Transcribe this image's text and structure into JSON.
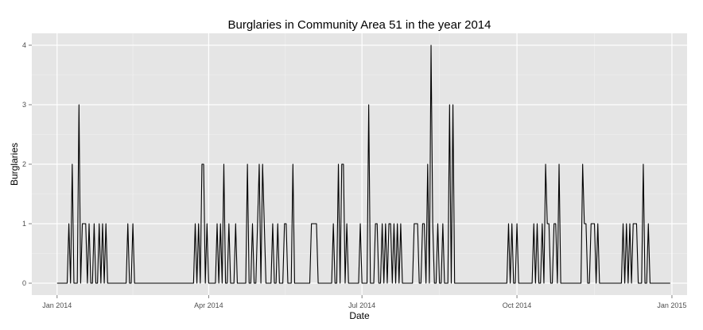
{
  "chart_data": {
    "type": "line",
    "title": "Burglaries in Community Area 51 in the year 2014",
    "xlabel": "Date",
    "ylabel": "Burglaries",
    "x_ticks": [
      {
        "date": "2014-01-01",
        "label": "Jan 2014"
      },
      {
        "date": "2014-04-01",
        "label": "Apr 2014"
      },
      {
        "date": "2014-07-01",
        "label": "Jul 2014"
      },
      {
        "date": "2014-10-01",
        "label": "Oct 2014"
      },
      {
        "date": "2015-01-01",
        "label": "Jan 2015"
      }
    ],
    "y_ticks": [
      0,
      1,
      2,
      3,
      4
    ],
    "xlim": [
      "2013-12-17",
      "2015-01-10"
    ],
    "ylim": [
      -0.2,
      4.2
    ],
    "grid": true,
    "background": "#e5e5e5",
    "line_color": "#000000",
    "series": [
      {
        "start_date": "2014-01-01",
        "end_date": "2014-12-31",
        "nonzero_days": [
          [
            "2014-01-08",
            1
          ],
          [
            "2014-01-10",
            2
          ],
          [
            "2014-01-14",
            3
          ],
          [
            "2014-01-16",
            1
          ],
          [
            "2014-01-17",
            1
          ],
          [
            "2014-01-18",
            1
          ],
          [
            "2014-01-20",
            1
          ],
          [
            "2014-01-23",
            1
          ],
          [
            "2014-01-26",
            1
          ],
          [
            "2014-01-28",
            1
          ],
          [
            "2014-01-30",
            1
          ],
          [
            "2014-02-12",
            1
          ],
          [
            "2014-02-15",
            1
          ],
          [
            "2014-03-24",
            1
          ],
          [
            "2014-03-26",
            1
          ],
          [
            "2014-03-28",
            2
          ],
          [
            "2014-03-29",
            2
          ],
          [
            "2014-03-31",
            1
          ],
          [
            "2014-04-06",
            1
          ],
          [
            "2014-04-08",
            1
          ],
          [
            "2014-04-10",
            2
          ],
          [
            "2014-04-13",
            1
          ],
          [
            "2014-04-17",
            1
          ],
          [
            "2014-04-24",
            2
          ],
          [
            "2014-04-27",
            1
          ],
          [
            "2014-04-30",
            1
          ],
          [
            "2014-05-01",
            2
          ],
          [
            "2014-05-03",
            2
          ],
          [
            "2014-05-04",
            1
          ],
          [
            "2014-05-09",
            1
          ],
          [
            "2014-05-12",
            1
          ],
          [
            "2014-05-16",
            1
          ],
          [
            "2014-05-17",
            1
          ],
          [
            "2014-05-21",
            2
          ],
          [
            "2014-06-01",
            1
          ],
          [
            "2014-06-02",
            1
          ],
          [
            "2014-06-03",
            1
          ],
          [
            "2014-06-04",
            1
          ],
          [
            "2014-06-14",
            1
          ],
          [
            "2014-06-17",
            2
          ],
          [
            "2014-06-19",
            2
          ],
          [
            "2014-06-20",
            2
          ],
          [
            "2014-06-22",
            1
          ],
          [
            "2014-06-30",
            1
          ],
          [
            "2014-07-05",
            3
          ],
          [
            "2014-07-09",
            1
          ],
          [
            "2014-07-10",
            1
          ],
          [
            "2014-07-13",
            1
          ],
          [
            "2014-07-15",
            1
          ],
          [
            "2014-07-17",
            1
          ],
          [
            "2014-07-18",
            1
          ],
          [
            "2014-07-20",
            1
          ],
          [
            "2014-07-22",
            1
          ],
          [
            "2014-07-24",
            1
          ],
          [
            "2014-08-01",
            1
          ],
          [
            "2014-08-02",
            1
          ],
          [
            "2014-08-03",
            1
          ],
          [
            "2014-08-06",
            1
          ],
          [
            "2014-08-07",
            1
          ],
          [
            "2014-08-09",
            2
          ],
          [
            "2014-08-11",
            4
          ],
          [
            "2014-08-12",
            1
          ],
          [
            "2014-08-15",
            1
          ],
          [
            "2014-08-18",
            1
          ],
          [
            "2014-08-22",
            3
          ],
          [
            "2014-08-24",
            3
          ],
          [
            "2014-09-26",
            1
          ],
          [
            "2014-09-28",
            1
          ],
          [
            "2014-10-01",
            1
          ],
          [
            "2014-10-11",
            1
          ],
          [
            "2014-10-13",
            1
          ],
          [
            "2014-10-16",
            1
          ],
          [
            "2014-10-18",
            2
          ],
          [
            "2014-10-19",
            1
          ],
          [
            "2014-10-20",
            1
          ],
          [
            "2014-10-23",
            1
          ],
          [
            "2014-10-24",
            1
          ],
          [
            "2014-10-26",
            2
          ],
          [
            "2014-11-09",
            2
          ],
          [
            "2014-11-10",
            1
          ],
          [
            "2014-11-11",
            1
          ],
          [
            "2014-11-14",
            1
          ],
          [
            "2014-11-15",
            1
          ],
          [
            "2014-11-16",
            1
          ],
          [
            "2014-11-18",
            1
          ],
          [
            "2014-12-03",
            1
          ],
          [
            "2014-12-05",
            1
          ],
          [
            "2014-12-07",
            1
          ],
          [
            "2014-12-09",
            1
          ],
          [
            "2014-12-10",
            1
          ],
          [
            "2014-12-11",
            1
          ],
          [
            "2014-12-15",
            2
          ],
          [
            "2014-12-18",
            1
          ]
        ]
      }
    ]
  }
}
